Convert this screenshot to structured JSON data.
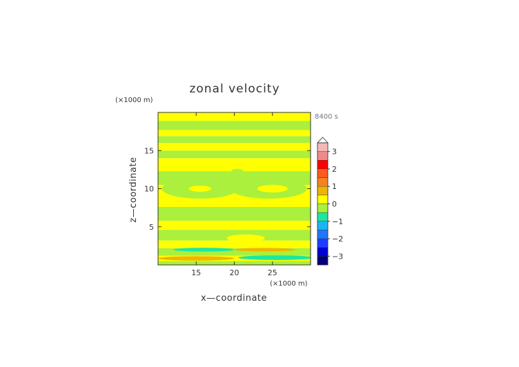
{
  "chart_data": {
    "type": "heatmap",
    "title": "zonal velocity",
    "xlabel": "x—coordinate",
    "ylabel": "z—coordinate",
    "x_unit": "(×1000 m)",
    "y_unit": "(×1000 m)",
    "time_label": "8400 s",
    "xlim": [
      10,
      30
    ],
    "ylim": [
      0,
      20
    ],
    "x_ticks": [
      15,
      20,
      25
    ],
    "y_ticks": [
      5,
      10,
      15
    ],
    "colorbar": {
      "ticks": [
        "3",
        "2",
        "1",
        "0",
        "−1",
        "−2",
        "−3"
      ],
      "tick_values": [
        3,
        2,
        1,
        0,
        -1,
        -2,
        -3
      ],
      "levels": [
        {
          "min": 3.0,
          "max": 3.5,
          "color": "#f5b8b8"
        },
        {
          "min": 2.5,
          "max": 3.0,
          "color": "#f08a8a"
        },
        {
          "min": 2.0,
          "max": 2.5,
          "color": "#ff0000"
        },
        {
          "min": 1.5,
          "max": 2.0,
          "color": "#ff5a1e"
        },
        {
          "min": 1.0,
          "max": 1.5,
          "color": "#f58220"
        },
        {
          "min": 0.5,
          "max": 1.0,
          "color": "#f0b400"
        },
        {
          "min": 0.0,
          "max": 0.5,
          "color": "#ffff00"
        },
        {
          "min": -0.5,
          "max": 0.0,
          "color": "#aaf03c"
        },
        {
          "min": -1.0,
          "max": -0.5,
          "color": "#1ee6a0"
        },
        {
          "min": -1.5,
          "max": -1.0,
          "color": "#1eb4f0"
        },
        {
          "min": -2.0,
          "max": -1.5,
          "color": "#1e78ff"
        },
        {
          "min": -2.5,
          "max": -2.0,
          "color": "#1e3cff"
        },
        {
          "min": -3.0,
          "max": -2.5,
          "color": "#0000d2"
        },
        {
          "min": -3.5,
          "max": -3.0,
          "color": "#00007d"
        }
      ]
    },
    "bands": [
      {
        "z0": 0.0,
        "z1": 0.5,
        "value": -0.25
      },
      {
        "z0": 0.5,
        "z1": 1.2,
        "value": 0.25
      },
      {
        "z0": 1.2,
        "z1": 2.2,
        "value": -0.25
      },
      {
        "z0": 2.2,
        "z1": 3.2,
        "value": 0.25
      },
      {
        "z0": 3.2,
        "z1": 4.6,
        "value": -0.25
      },
      {
        "z0": 4.6,
        "z1": 5.8,
        "value": 0.25
      },
      {
        "z0": 5.8,
        "z1": 7.6,
        "value": -0.25
      },
      {
        "z0": 7.6,
        "z1": 10.5,
        "value": 0.25
      },
      {
        "z0": 10.5,
        "z1": 12.3,
        "value": -0.25
      },
      {
        "z0": 12.3,
        "z1": 14.0,
        "value": 0.25
      },
      {
        "z0": 14.0,
        "z1": 15.0,
        "value": -0.25
      },
      {
        "z0": 15.0,
        "z1": 16.0,
        "value": 0.25
      },
      {
        "z0": 16.0,
        "z1": 16.9,
        "value": -0.25
      },
      {
        "z0": 16.9,
        "z1": 17.7,
        "value": 0.25
      },
      {
        "z0": 17.7,
        "z1": 18.9,
        "value": -0.25
      },
      {
        "z0": 18.9,
        "z1": 20.0,
        "value": 0.25
      }
    ],
    "features": [
      {
        "x": 15.5,
        "z": 10.0,
        "rx": 5.0,
        "rz": 1.3,
        "value": -0.25
      },
      {
        "x": 24.5,
        "z": 10.0,
        "rx": 5.0,
        "rz": 1.3,
        "value": -0.25
      },
      {
        "x": 15.5,
        "z": 10.0,
        "rx": 1.5,
        "rz": 0.4,
        "value": 0.25
      },
      {
        "x": 25.0,
        "z": 10.0,
        "rx": 2.0,
        "rz": 0.5,
        "value": 0.25
      },
      {
        "x": 20.4,
        "z": 12.3,
        "rx": 0.8,
        "rz": 0.3,
        "value": -0.25
      },
      {
        "x": 21.5,
        "z": 3.5,
        "rx": 2.5,
        "rz": 0.5,
        "value": 0.25
      },
      {
        "x": 15.0,
        "z": 0.85,
        "rx": 5.0,
        "rz": 0.28,
        "value": 0.75
      },
      {
        "x": 25.5,
        "z": 0.95,
        "rx": 5.0,
        "rz": 0.3,
        "value": -0.75
      },
      {
        "x": 16.0,
        "z": 2.0,
        "rx": 4.0,
        "rz": 0.25,
        "value": -0.75
      },
      {
        "x": 24.0,
        "z": 2.0,
        "rx": 4.0,
        "rz": 0.22,
        "value": 0.75
      }
    ]
  }
}
